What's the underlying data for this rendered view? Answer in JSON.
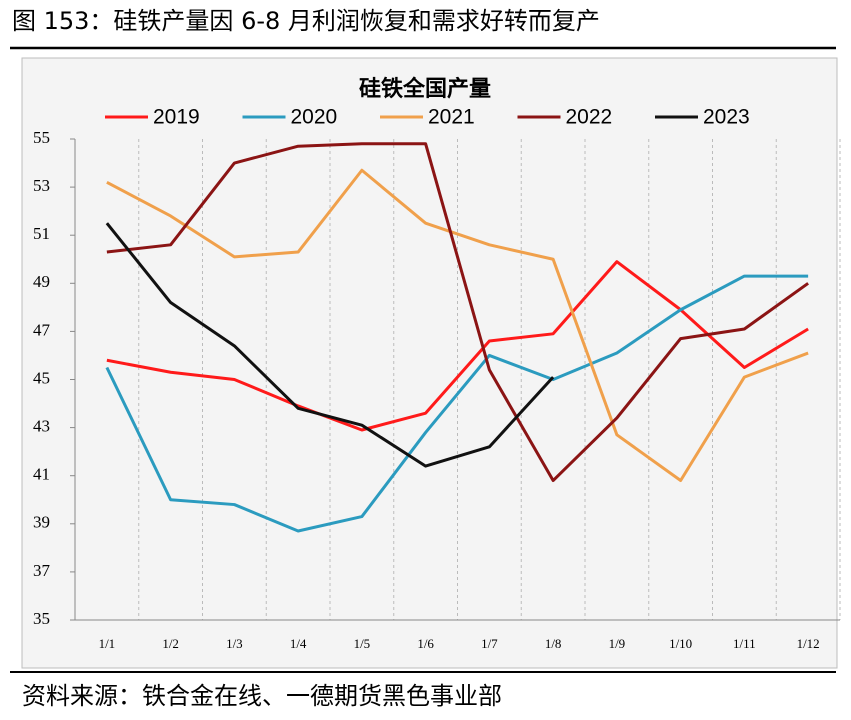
{
  "header": "图 153：硅铁产量因 6-8 月利润恢复和需求好转而复产",
  "source": "资料来源：铁合金在线、一德期货黑色事业部",
  "chart_data": {
    "type": "line",
    "title": "硅铁全国产量",
    "categories": [
      "1/1",
      "1/2",
      "1/3",
      "1/4",
      "1/5",
      "1/6",
      "1/7",
      "1/8",
      "1/9",
      "1/10",
      "1/11",
      "1/12"
    ],
    "series": [
      {
        "name": "2019",
        "color": "#ff1a1a",
        "values": [
          45.8,
          45.3,
          45.0,
          43.9,
          42.9,
          43.6,
          46.6,
          46.9,
          49.9,
          47.9,
          45.5,
          47.1
        ]
      },
      {
        "name": "2020",
        "color": "#2b9bbf",
        "values": [
          45.5,
          40.0,
          39.8,
          38.7,
          39.3,
          42.8,
          46.0,
          45.0,
          46.1,
          47.9,
          49.3,
          49.3
        ]
      },
      {
        "name": "2021",
        "color": "#f0a04b",
        "values": [
          53.2,
          51.8,
          50.1,
          50.3,
          53.7,
          51.5,
          50.6,
          50.0,
          42.7,
          40.8,
          45.1,
          46.1
        ]
      },
      {
        "name": "2022",
        "color": "#8b1414",
        "values": [
          50.3,
          50.6,
          54.0,
          54.7,
          54.8,
          54.8,
          45.4,
          40.8,
          43.4,
          46.7,
          47.1,
          49.0
        ]
      },
      {
        "name": "2023",
        "color": "#111111",
        "values": [
          51.5,
          48.2,
          46.4,
          43.8,
          43.1,
          41.4,
          42.2,
          45.1,
          null,
          null,
          null,
          null
        ]
      }
    ],
    "ylim": [
      35,
      55
    ],
    "yticks": [
      35,
      37,
      39,
      41,
      43,
      45,
      47,
      49,
      51,
      53,
      55
    ],
    "grid": true
  }
}
